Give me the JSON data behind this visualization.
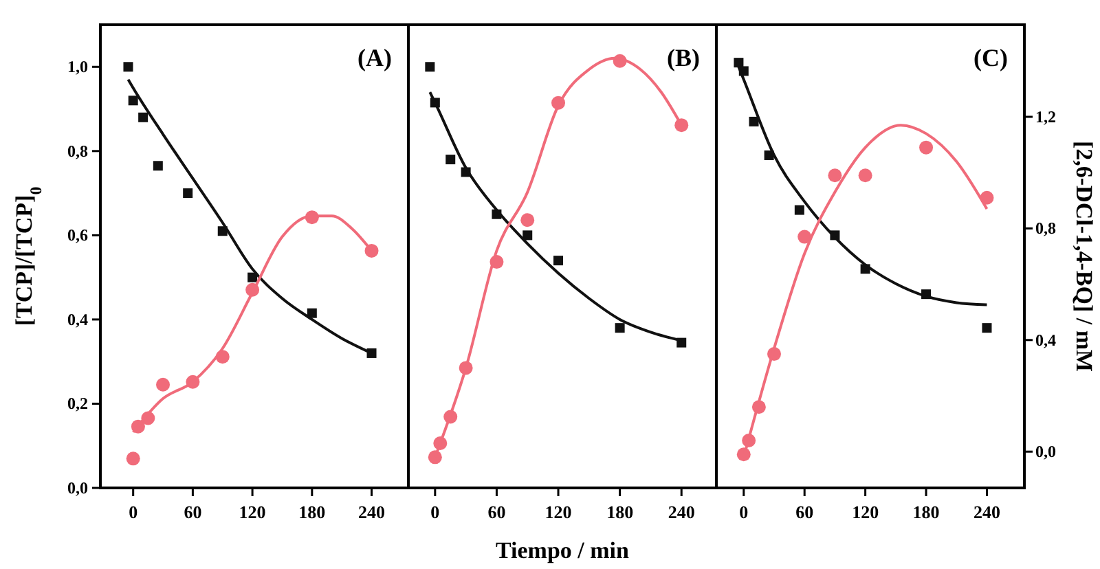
{
  "chart_data": [
    {
      "type": "scatter",
      "title": "(A)",
      "ylabel": "[TCP]/[TCP]$_{0}$",
      "xlim": [
        -33,
        277
      ],
      "xticks": [
        0,
        60,
        120,
        180,
        240
      ],
      "ylim": [
        0,
        1.1
      ],
      "yticks": [
        {
          "value": 0,
          "label": "0,0"
        },
        {
          "value": 0.2,
          "label": "0,2"
        },
        {
          "value": 0.4,
          "label": "0,4"
        },
        {
          "value": 0.6,
          "label": "0,6"
        },
        {
          "value": 0.8,
          "label": "0,8"
        },
        {
          "value": 1.0,
          "label": "1,0"
        }
      ],
      "y2lim": [
        -0.13,
        1.53
      ],
      "series": [
        {
          "color": "#111111",
          "marker": "square",
          "x": [
            -5,
            0,
            10,
            25,
            55,
            90,
            120,
            180,
            240
          ],
          "values": [
            1.0,
            0.92,
            0.88,
            0.765,
            0.7,
            0.61,
            0.5,
            0.415,
            0.32
          ]
        },
        {
          "color": "#f06b7a",
          "marker": "circle",
          "axis": "y2",
          "x": [
            0,
            5,
            15,
            30,
            60,
            90,
            120,
            180,
            240
          ],
          "values": [
            -0.025,
            0.09,
            0.12,
            0.24,
            0.25,
            0.34,
            0.58,
            0.84,
            0.72
          ]
        },
        {
          "type": "line",
          "color": "#111111",
          "x": [
            -5,
            0,
            30,
            60,
            90,
            120,
            150,
            180,
            210,
            240
          ],
          "values": [
            0.97,
            0.95,
            0.84,
            0.735,
            0.63,
            0.52,
            0.45,
            0.4,
            0.355,
            0.32
          ]
        },
        {
          "type": "line",
          "color": "#f06b7a",
          "axis": "y2",
          "x": [
            0,
            30,
            60,
            90,
            120,
            150,
            180,
            200,
            220,
            240
          ],
          "values": [
            0.07,
            0.19,
            0.25,
            0.37,
            0.57,
            0.77,
            0.845,
            0.845,
            0.8,
            0.72
          ]
        }
      ]
    },
    {
      "type": "scatter",
      "title": "(B)",
      "xlabel": "Tiempo / min",
      "tick_labels": "x",
      "xlim": [
        -26,
        274
      ],
      "xticks": [
        0,
        60,
        120,
        180,
        240
      ],
      "ylim": [
        0,
        1.1
      ],
      "y2lim": [
        -0.13,
        1.53
      ],
      "series": [
        {
          "color": "#111111",
          "marker": "square",
          "x": [
            -5,
            0,
            15,
            30,
            60,
            90,
            120,
            180,
            240
          ],
          "values": [
            1.0,
            0.915,
            0.78,
            0.75,
            0.65,
            0.6,
            0.54,
            0.38,
            0.345
          ]
        },
        {
          "color": "#f06b7a",
          "marker": "circle",
          "axis": "y2",
          "x": [
            0,
            5,
            15,
            30,
            60,
            90,
            120,
            180,
            240
          ],
          "values": [
            -0.02,
            0.03,
            0.125,
            0.3,
            0.68,
            0.83,
            1.25,
            1.4,
            1.17
          ]
        },
        {
          "type": "line",
          "color": "#111111",
          "x": [
            -5,
            0,
            30,
            60,
            90,
            120,
            150,
            180,
            210,
            240
          ],
          "values": [
            0.94,
            0.915,
            0.76,
            0.66,
            0.58,
            0.51,
            0.45,
            0.4,
            0.37,
            0.35
          ]
        },
        {
          "type": "line",
          "color": "#f06b7a",
          "axis": "y2",
          "x": [
            0,
            30,
            60,
            90,
            120,
            150,
            175,
            200,
            220,
            240
          ],
          "values": [
            -0.02,
            0.3,
            0.72,
            0.93,
            1.24,
            1.37,
            1.41,
            1.37,
            1.29,
            1.17
          ]
        }
      ]
    },
    {
      "type": "scatter",
      "title": "(C)",
      "y2label": "[2,6-DCl-1,4-BQ] / mM",
      "xlim": [
        -27,
        277
      ],
      "xticks": [
        0,
        60,
        120,
        180,
        240
      ],
      "ylim": [
        0,
        1.1
      ],
      "y2lim": [
        -0.13,
        1.53
      ],
      "y2ticks": [
        {
          "value": 0,
          "label": "0,0"
        },
        {
          "value": 0.4,
          "label": "0,4"
        },
        {
          "value": 0.8,
          "label": "0,8"
        },
        {
          "value": 1.2,
          "label": "1,2"
        }
      ],
      "series": [
        {
          "color": "#111111",
          "marker": "square",
          "x": [
            -5,
            0,
            10,
            25,
            55,
            90,
            120,
            180,
            240
          ],
          "values": [
            1.01,
            0.99,
            0.87,
            0.79,
            0.66,
            0.6,
            0.52,
            0.46,
            0.38
          ]
        },
        {
          "color": "#f06b7a",
          "marker": "circle",
          "axis": "y2",
          "x": [
            0,
            5,
            15,
            30,
            60,
            90,
            120,
            180,
            240
          ],
          "values": [
            -0.01,
            0.04,
            0.16,
            0.35,
            0.77,
            0.99,
            0.99,
            1.09,
            0.91
          ]
        },
        {
          "type": "line",
          "color": "#111111",
          "x": [
            -5,
            0,
            30,
            60,
            90,
            120,
            150,
            180,
            210,
            240
          ],
          "values": [
            1.0,
            0.97,
            0.79,
            0.68,
            0.595,
            0.53,
            0.485,
            0.455,
            0.44,
            0.435
          ]
        },
        {
          "type": "line",
          "color": "#f06b7a",
          "axis": "y2",
          "x": [
            0,
            30,
            60,
            90,
            120,
            155,
            180,
            210,
            240
          ],
          "values": [
            -0.02,
            0.37,
            0.71,
            0.93,
            1.09,
            1.17,
            1.14,
            1.04,
            0.87
          ]
        }
      ]
    }
  ]
}
